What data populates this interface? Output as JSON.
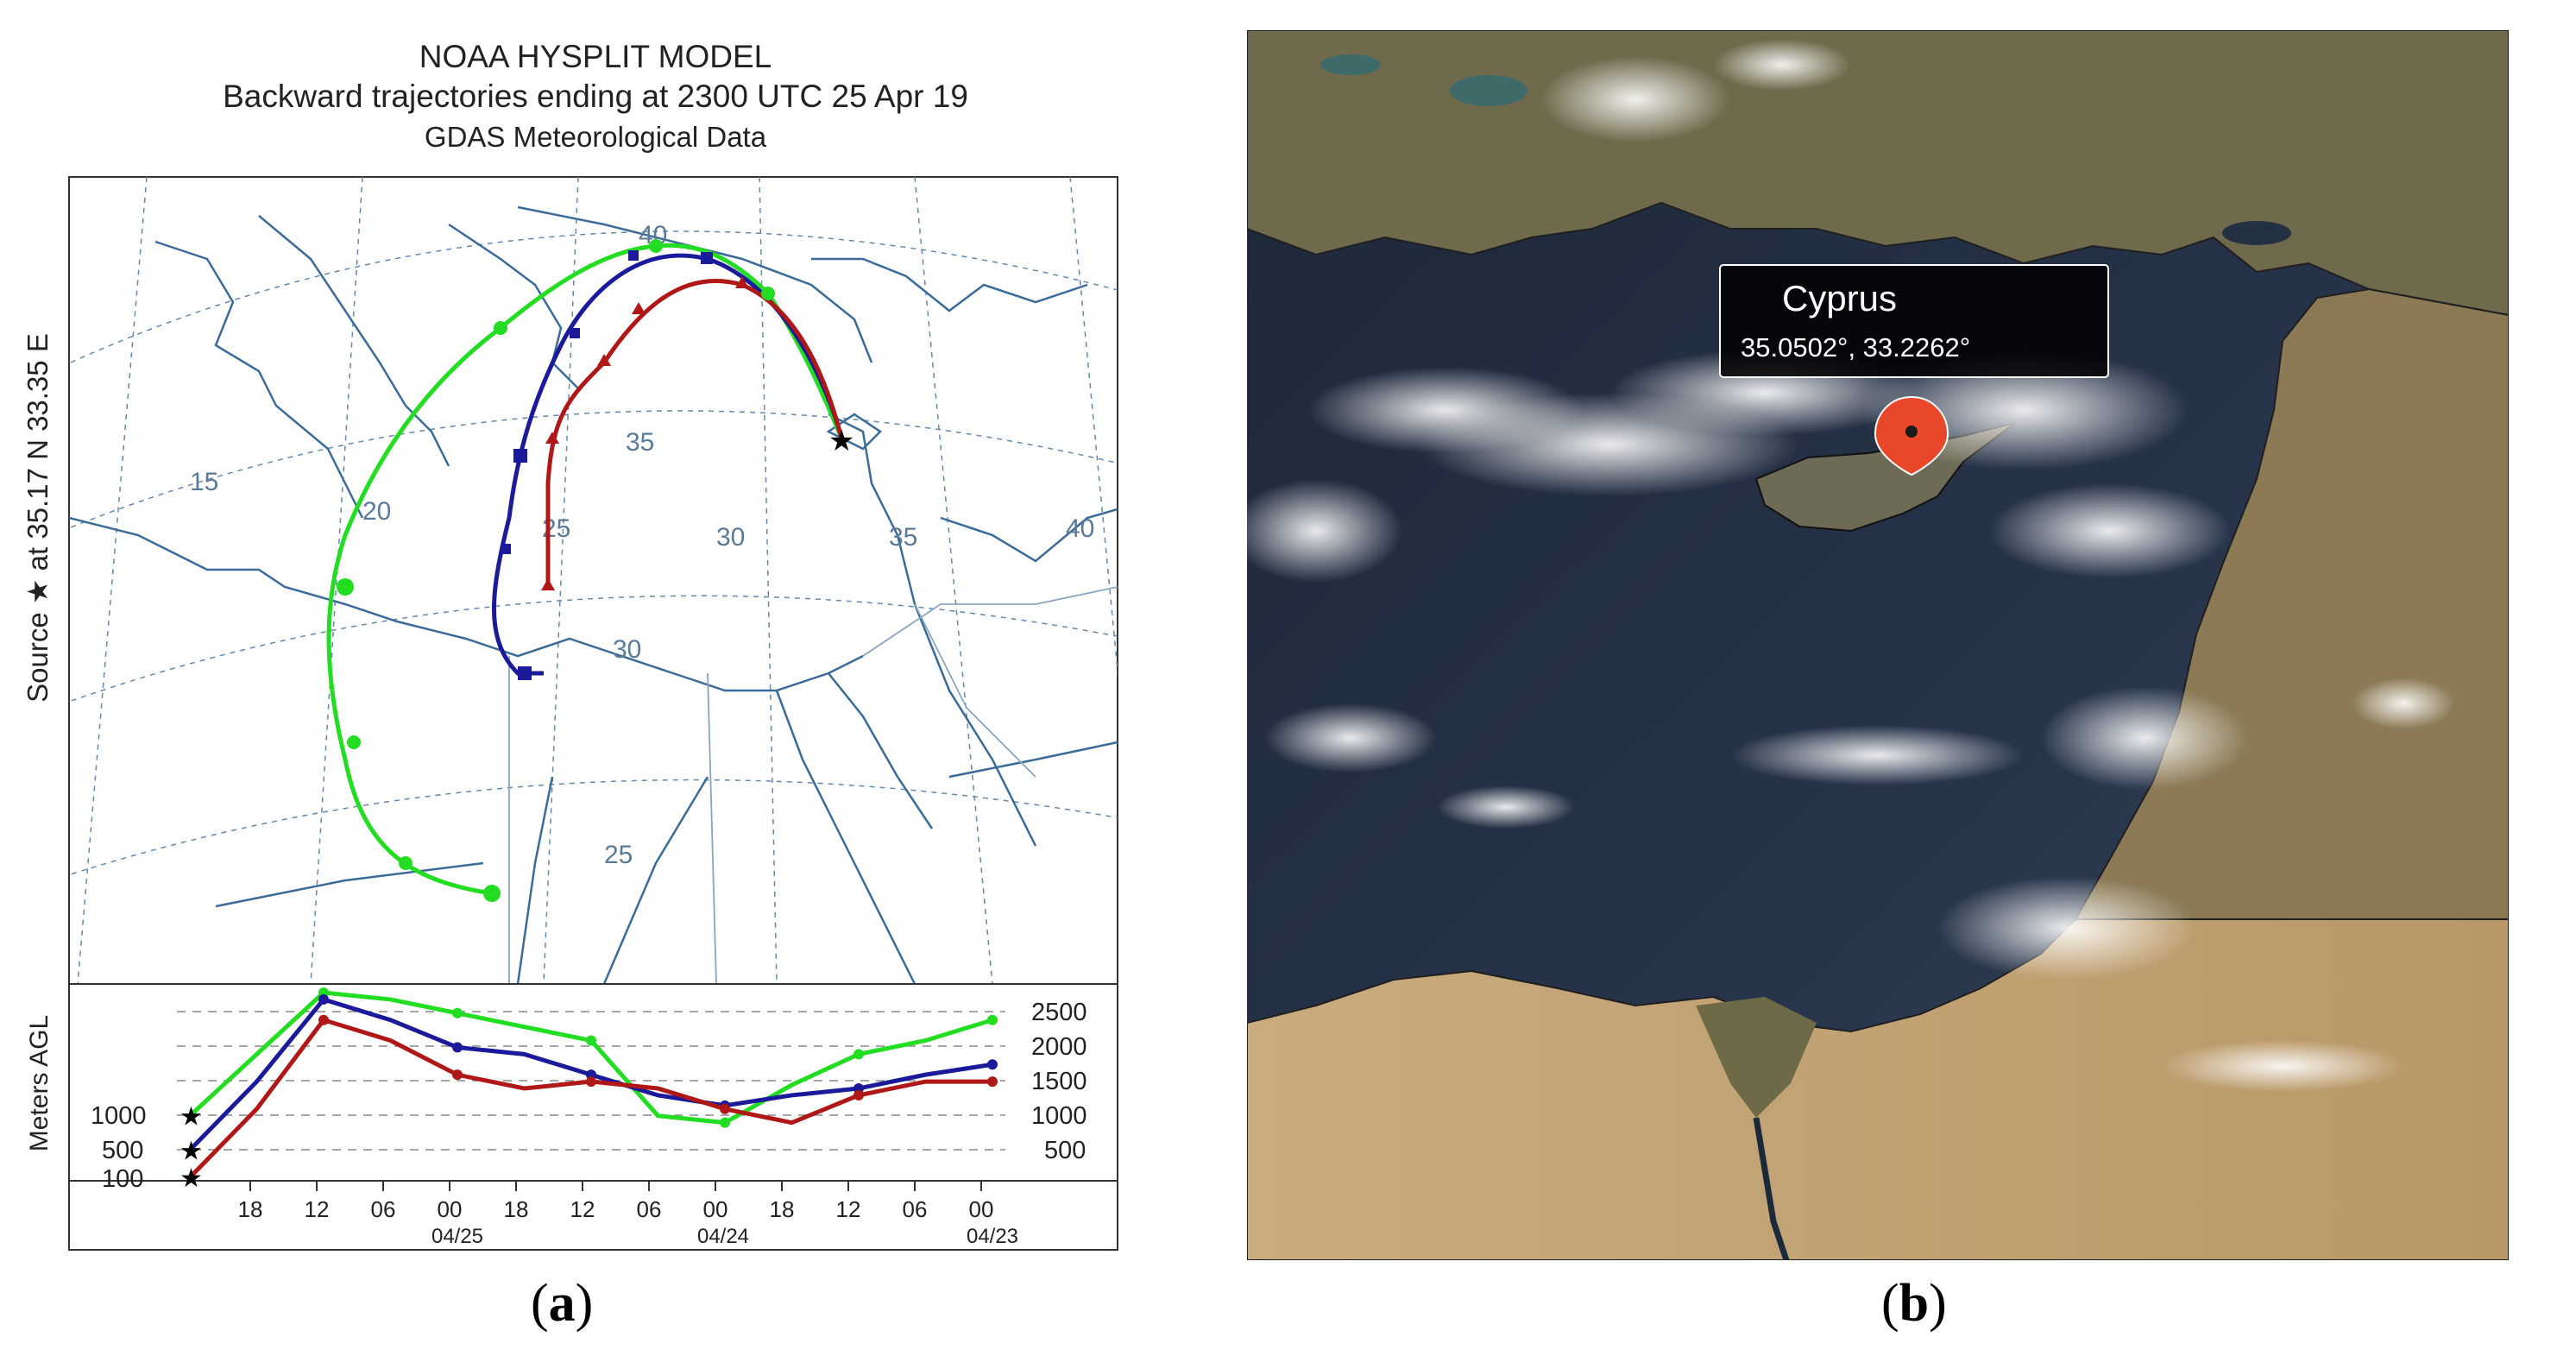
{
  "panel_a": {
    "title_lines": [
      "NOAA HYSPLIT MODEL",
      "Backward trajectories ending at 2300 UTC 25 Apr 19",
      "GDAS Meteorological Data"
    ],
    "side_label": "Source ★ at 35.17 N 33.35 E",
    "map_lat_labels": [
      "40",
      "35",
      "30",
      "25"
    ],
    "map_lon_labels": [
      "15",
      "20",
      "25",
      "30",
      "35",
      "40"
    ],
    "height_axis_label": "Meters AGL",
    "height_left_ticks": [
      "1000",
      "500",
      "100"
    ],
    "height_right_ticks": [
      "2500",
      "2000",
      "1500",
      "1000",
      "500"
    ],
    "time_ticks": [
      "18",
      "12",
      "06",
      "00",
      "18",
      "12",
      "06",
      "00",
      "18",
      "12",
      "06",
      "00"
    ],
    "date_labels": [
      "04/25",
      "04/24",
      "04/23"
    ],
    "colors": {
      "green": "#22dd22",
      "blue": "#1a1a9a",
      "red": "#b01818"
    },
    "chart_data": {
      "type": "line",
      "xlabel": "",
      "ylabel": "Meters AGL",
      "x": [
        "25 23UTC",
        "25 18",
        "25 12",
        "25 06",
        "25 00",
        "24 18",
        "24 12",
        "24 06",
        "24 00",
        "23 18",
        "23 12",
        "23 06",
        "23 00"
      ],
      "ylim": [
        0,
        2800
      ],
      "series": [
        {
          "color": "#22dd22",
          "values": [
            1000,
            1900,
            2800,
            2700,
            2500,
            2300,
            2100,
            1000,
            900,
            1450,
            1900,
            2100,
            2400
          ]
        },
        {
          "color": "#1a1a9a",
          "values": [
            500,
            1500,
            2700,
            2400,
            2000,
            1900,
            1600,
            1300,
            1150,
            1300,
            1400,
            1600,
            1750
          ]
        },
        {
          "color": "#b01818",
          "values": [
            100,
            1100,
            2400,
            2100,
            1600,
            1400,
            1500,
            1400,
            1100,
            900,
            1300,
            1500,
            1500
          ]
        }
      ]
    }
  },
  "panel_b": {
    "popup_title": "Cyprus",
    "popup_coords": "35.0502°, 33.2262°",
    "pin_color": "#e8472a"
  },
  "captions": {
    "a": "a",
    "b": "b"
  }
}
